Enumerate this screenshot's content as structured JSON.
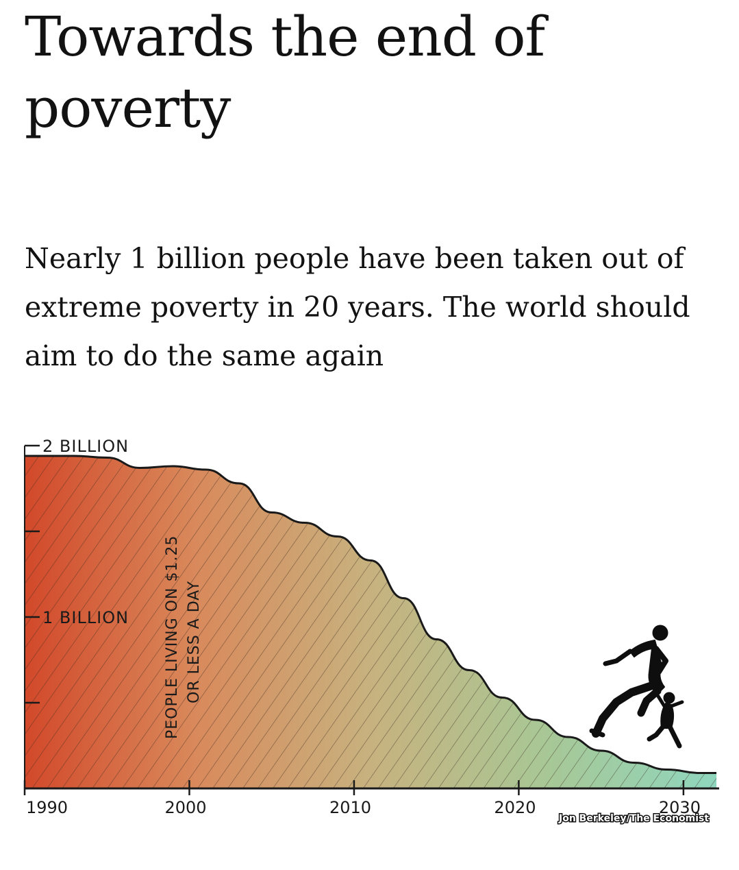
{
  "article": {
    "headline": "Towards the end of poverty",
    "standfirst": "Nearly 1 billion people have been taken out of extreme poverty in 20 years. The world should aim to do the same again"
  },
  "chart_data": {
    "type": "area",
    "title": "",
    "annotation_lines": [
      "PEOPLE LIVING ON $1.25",
      "OR LESS A DAY"
    ],
    "credit": "Jon Berkeley/The Economist",
    "x": [
      1990,
      1993,
      1995,
      1997,
      1999,
      2001,
      2003,
      2005,
      2007,
      2009,
      2011,
      2013,
      2015,
      2017,
      2019,
      2021,
      2023,
      2025,
      2027,
      2029,
      2031,
      2032
    ],
    "y": [
      1.94,
      1.94,
      1.93,
      1.87,
      1.88,
      1.86,
      1.78,
      1.61,
      1.55,
      1.47,
      1.33,
      1.11,
      0.87,
      0.69,
      0.53,
      0.4,
      0.3,
      0.22,
      0.15,
      0.11,
      0.09,
      0.09
    ],
    "xlim": [
      1990,
      2032
    ],
    "ylim": [
      0,
      2
    ],
    "x_ticks": [
      1990,
      2000,
      2010,
      2020,
      2030
    ],
    "x_tick_labels": [
      "1990",
      "2000",
      "2010",
      "2020",
      "2030"
    ],
    "y_ticks": [
      0.5,
      1,
      1.5,
      2
    ],
    "y_tick_labels": [
      "",
      "1 BILLION",
      "",
      "2 BILLION"
    ],
    "gradient_colors": [
      "#d2492a",
      "#d98a5c",
      "#c7b27f",
      "#a8c795",
      "#8fd6be"
    ],
    "hatching": true,
    "grid": false,
    "legend": "none",
    "illustration": [
      "adult-running-silhouette",
      "child-running-silhouette"
    ]
  }
}
